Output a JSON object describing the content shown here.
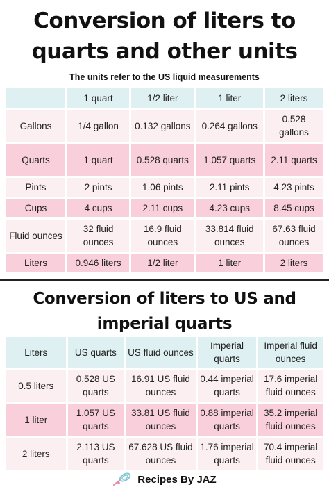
{
  "title1": "Conversion of liters to quarts and other units",
  "subtitle": "The units refer to the US liquid measurements",
  "table1": {
    "header": [
      "",
      "1 quart",
      "1/2 liter",
      "1 liter",
      "2 liters"
    ],
    "rows": [
      [
        "Gallons",
        "1/4 gallon",
        "0.132 gallons",
        "0.264 gallons",
        "0.528 gallons"
      ],
      [
        "Quarts",
        "1 quart",
        "0.528 quarts",
        "1.057 quarts",
        "2.11 quarts"
      ],
      [
        "Pints",
        "2 pints",
        "1.06 pints",
        "2.11 pints",
        "4.23 pints"
      ],
      [
        "Cups",
        "4 cups",
        "2.11 cups",
        "4.23 cups",
        "8.45 cups"
      ],
      [
        "Fluid ounces",
        "32 fluid ounces",
        "16.9 fluid ounces",
        "33.814 fluid ounces",
        "67.63 fluid ounces"
      ],
      [
        "Liters",
        "0.946 liters",
        "1/2 liter",
        "1 liter",
        "2 liters"
      ]
    ]
  },
  "title2": "Conversion of liters to US and imperial quarts",
  "table2": {
    "header": [
      "Liters",
      "US quarts",
      "US fluid ounces",
      "Imperial quarts",
      "Imperial fluid ounces"
    ],
    "rows": [
      [
        "0.5 liters",
        "0.528 US quarts",
        "16.91 US fluid ounces",
        "0.44 imperial quarts",
        "17.6 imperial fluid ounces"
      ],
      [
        "1 liter",
        "1.057 US quarts",
        "33.81 US fluid ounces",
        "0.88 imperial quarts",
        "35.2 imperial fluid ounces"
      ],
      [
        "2 liters",
        "2.113 US quarts",
        "67.628 US fluid ounces",
        "1.76 imperial quarts",
        "70.4 imperial fluid ounces"
      ]
    ]
  },
  "footer": {
    "brand": "Recipes By JAZ",
    "logo_icon": "whisk-icon"
  },
  "colors": {
    "header": "#dff0f3",
    "row_light": "#fbeff1",
    "row_pink": "#f9cfdb"
  }
}
